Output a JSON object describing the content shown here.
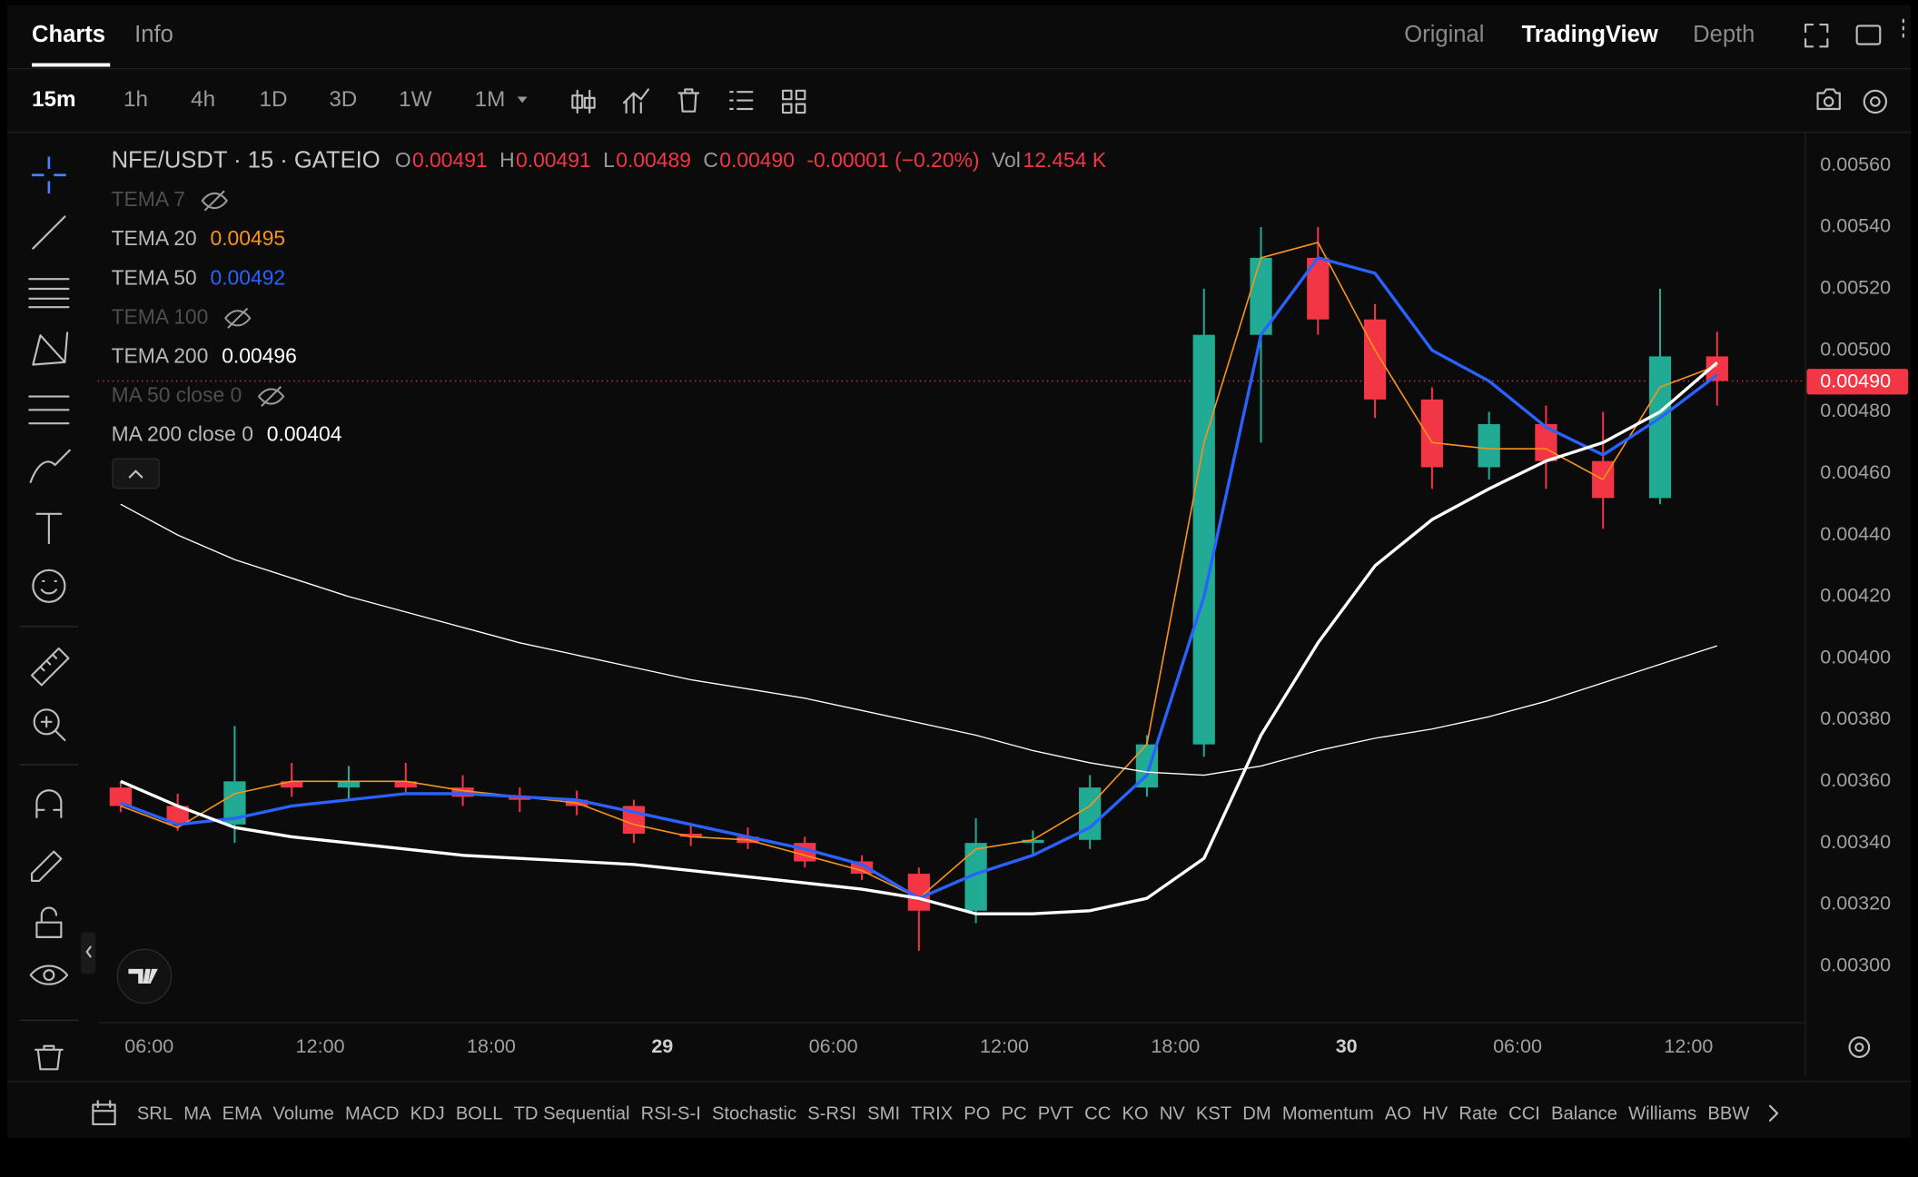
{
  "tabs": [
    "Charts",
    "Info"
  ],
  "views": [
    "Original",
    "TradingView",
    "Depth"
  ],
  "intervals": [
    "15m",
    "1h",
    "4h",
    "1D",
    "3D",
    "1W",
    "1M"
  ],
  "legend": {
    "symbol": "NFE/USDT · 15 · GATEIO",
    "ohlc": [
      {
        "key": "O",
        "value": "0.00491"
      },
      {
        "key": "H",
        "value": "0.00491"
      },
      {
        "key": "L",
        "value": "0.00489"
      },
      {
        "key": "C",
        "value": "0.00490"
      }
    ],
    "change": "-0.00001 (−0.20%)",
    "volume": {
      "key": "Vol",
      "value": "12.454 K"
    }
  },
  "hidden_indicators": [
    "TEMA 7",
    "TEMA 100",
    "MA 50 close 0"
  ],
  "indicator_bar": [
    "SRL",
    "MA",
    "EMA",
    "Volume",
    "MACD",
    "KDJ",
    "BOLL",
    "TD Sequential",
    "RSI-S-I",
    "Stochastic",
    "S-RSI",
    "SMI",
    "TRIX",
    "PO",
    "PC",
    "PVT",
    "CC",
    "KO",
    "NV",
    "KST",
    "DM",
    "Momentum",
    "AO",
    "HV",
    "Rate",
    "CCI",
    "Balance",
    "Williams",
    "BBW"
  ],
  "chart_data": {
    "type": "candlestick",
    "x": [
      -1,
      1,
      3,
      5,
      7,
      9,
      11,
      13,
      15,
      17,
      19,
      21,
      23,
      25,
      27,
      29,
      31,
      33,
      35,
      37,
      39,
      41,
      43,
      45,
      47,
      49,
      51,
      53,
      55
    ],
    "open": [
      0.00358,
      0.00352,
      0.00346,
      0.0036,
      0.00358,
      0.0036,
      0.00358,
      0.00355,
      0.00354,
      0.00352,
      0.00343,
      0.00342,
      0.0034,
      0.00334,
      0.0033,
      0.00318,
      0.0034,
      0.00341,
      0.00358,
      0.00372,
      0.00505,
      0.0053,
      0.0051,
      0.00484,
      0.00462,
      0.00476,
      0.00464,
      0.00452,
      0.00498
    ],
    "high": [
      0.0036,
      0.00356,
      0.00378,
      0.00366,
      0.00365,
      0.00366,
      0.00362,
      0.00358,
      0.00357,
      0.00354,
      0.00346,
      0.00345,
      0.00342,
      0.00336,
      0.00332,
      0.00348,
      0.00344,
      0.00362,
      0.00375,
      0.0052,
      0.0054,
      0.0054,
      0.00515,
      0.00488,
      0.0048,
      0.00482,
      0.0048,
      0.0052,
      0.00506
    ],
    "low": [
      0.0035,
      0.00344,
      0.0034,
      0.00355,
      0.00354,
      0.00356,
      0.00352,
      0.0035,
      0.00349,
      0.0034,
      0.00339,
      0.00338,
      0.00332,
      0.00328,
      0.00305,
      0.00314,
      0.00336,
      0.00338,
      0.00355,
      0.00368,
      0.0047,
      0.00505,
      0.00478,
      0.00455,
      0.00458,
      0.00455,
      0.00442,
      0.0045,
      0.00482
    ],
    "close": [
      0.00352,
      0.00346,
      0.0036,
      0.00358,
      0.0036,
      0.00358,
      0.00355,
      0.00354,
      0.00352,
      0.00343,
      0.00342,
      0.0034,
      0.00334,
      0.0033,
      0.00318,
      0.0034,
      0.00341,
      0.00358,
      0.00372,
      0.00505,
      0.0053,
      0.0051,
      0.00484,
      0.00462,
      0.00476,
      0.00464,
      0.00452,
      0.00498,
      0.0049
    ],
    "up_color": "#22ab94",
    "down_color": "#f23645",
    "series": [
      {
        "name": "TEMA 20",
        "color": "#f7931a",
        "width": 1.2,
        "legend_value": "0.00495",
        "values": [
          0.00352,
          0.00345,
          0.00356,
          0.0036,
          0.0036,
          0.0036,
          0.00357,
          0.00355,
          0.00353,
          0.00346,
          0.00342,
          0.00341,
          0.00336,
          0.00331,
          0.00322,
          0.00338,
          0.00341,
          0.00352,
          0.00372,
          0.0047,
          0.0053,
          0.00535,
          0.005,
          0.0047,
          0.00468,
          0.00468,
          0.00458,
          0.00488,
          0.00495
        ]
      },
      {
        "name": "TEMA 50",
        "color": "#2962ff",
        "width": 2.5,
        "legend_value": "0.00492",
        "values": [
          0.00353,
          0.00346,
          0.00348,
          0.00352,
          0.00354,
          0.00356,
          0.00356,
          0.00355,
          0.00354,
          0.0035,
          0.00346,
          0.00342,
          0.00338,
          0.00333,
          0.00322,
          0.0033,
          0.00336,
          0.00345,
          0.00362,
          0.0042,
          0.00505,
          0.0053,
          0.00525,
          0.005,
          0.0049,
          0.00475,
          0.00466,
          0.00478,
          0.00492
        ]
      },
      {
        "name": "TEMA 200",
        "color": "#ffffff",
        "width": 2.5,
        "legend_value": "0.00496",
        "values": [
          0.0036,
          0.00352,
          0.00345,
          0.00342,
          0.0034,
          0.00338,
          0.00336,
          0.00335,
          0.00334,
          0.00333,
          0.00331,
          0.00329,
          0.00327,
          0.00325,
          0.00322,
          0.00317,
          0.00317,
          0.00318,
          0.00322,
          0.00335,
          0.00375,
          0.00405,
          0.0043,
          0.00445,
          0.00455,
          0.00464,
          0.0047,
          0.0048,
          0.00496
        ]
      },
      {
        "name": "MA 200 close 0",
        "color": "#ffffff",
        "width": 1,
        "legend_value": "0.00404",
        "values": [
          0.0045,
          0.0044,
          0.00432,
          0.00426,
          0.0042,
          0.00415,
          0.0041,
          0.00405,
          0.00401,
          0.00397,
          0.00393,
          0.0039,
          0.00387,
          0.00383,
          0.00379,
          0.00375,
          0.0037,
          0.00366,
          0.00363,
          0.00362,
          0.00365,
          0.0037,
          0.00374,
          0.00377,
          0.00381,
          0.00386,
          0.00392,
          0.00398,
          0.00404
        ]
      }
    ],
    "price_line": {
      "value": 0.0049,
      "label": "0.00490"
    },
    "xlim": [
      -1.8,
      58.1
    ],
    "xticks": [
      {
        "value": 0,
        "label": "06:00"
      },
      {
        "value": 6,
        "label": "12:00"
      },
      {
        "value": 12,
        "label": "18:00"
      },
      {
        "value": 18,
        "label": "29"
      },
      {
        "value": 24,
        "label": "06:00"
      },
      {
        "value": 30,
        "label": "12:00"
      },
      {
        "value": 36,
        "label": "18:00"
      },
      {
        "value": 42,
        "label": "30"
      },
      {
        "value": 48,
        "label": "06:00"
      },
      {
        "value": 54,
        "label": "12:00"
      }
    ],
    "ylim": [
      0.00282,
      0.0057
    ],
    "yticks": [
      {
        "value": 0.003,
        "label": "0.00300"
      },
      {
        "value": 0.0032,
        "label": "0.00320"
      },
      {
        "value": 0.0034,
        "label": "0.00340"
      },
      {
        "value": 0.0036,
        "label": "0.00360"
      },
      {
        "value": 0.0038,
        "label": "0.00380"
      },
      {
        "value": 0.004,
        "label": "0.00400"
      },
      {
        "value": 0.0042,
        "label": "0.00420"
      },
      {
        "value": 0.0044,
        "label": "0.00440"
      },
      {
        "value": 0.0046,
        "label": "0.00460"
      },
      {
        "value": 0.0048,
        "label": "0.00480"
      },
      {
        "value": 0.005,
        "label": "0.00500"
      },
      {
        "value": 0.0052,
        "label": "0.00520"
      },
      {
        "value": 0.0054,
        "label": "0.00540"
      },
      {
        "value": 0.0056,
        "label": "0.00560"
      }
    ],
    "grid": false
  }
}
